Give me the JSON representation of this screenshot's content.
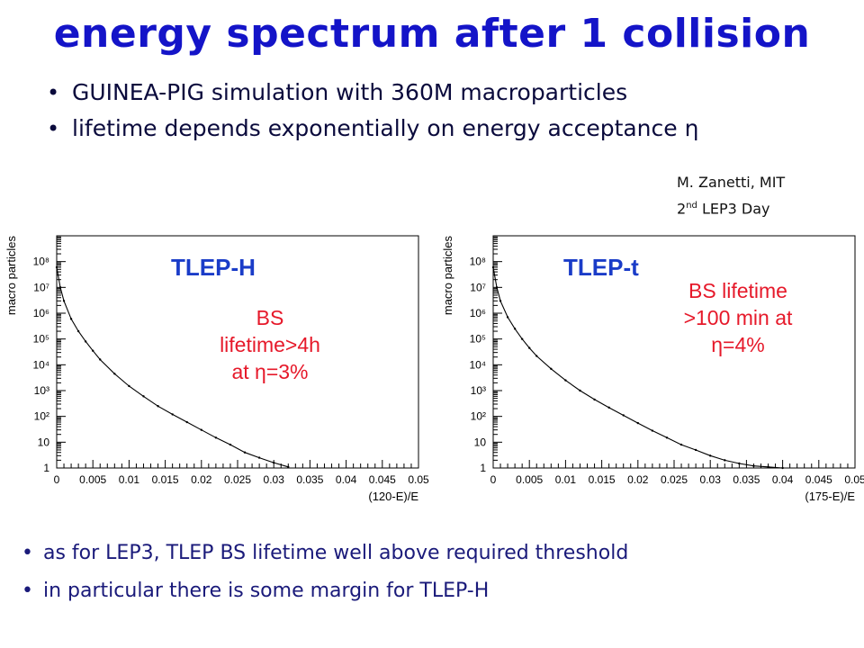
{
  "slide": {
    "title": "energy spectrum after 1 collision",
    "bullets": [
      "GUINEA-PIG simulation with 360M macroparticles",
      "lifetime depends exponentially on energy acceptance η"
    ],
    "credit_line1": "M. Zanetti, MIT",
    "credit_line2_prefix": "2",
    "credit_line2_sup": "nd",
    "credit_line2_suffix": " LEP3 Day",
    "bottom_bullets": [
      "as for LEP3, TLEP BS lifetime well above required threshold",
      "in particular there is some margin for TLEP-H"
    ]
  },
  "colors": {
    "title": "#1414c8",
    "plot_title": "#1a3cc8",
    "note": "#e6192a"
  },
  "chart_data": [
    {
      "type": "line",
      "title": "TLEP-H",
      "annotation_lines": [
        "BS",
        "lifetime>4h",
        "at η=3%"
      ],
      "xlabel": "(120-E)/E",
      "ylabel": "macro particles",
      "xlim": [
        0,
        0.05
      ],
      "ylim": [
        1,
        1000000000
      ],
      "yscale": "log",
      "x_ticks": [
        "0",
        "0.005",
        "0.01",
        "0.015",
        "0.02",
        "0.025",
        "0.03",
        "0.035",
        "0.04",
        "0.045",
        "0.05"
      ],
      "y_ticks": [
        "1",
        "10",
        "10²",
        "10³",
        "10⁴",
        "10⁵",
        "10⁶",
        "10⁷",
        "10⁸"
      ],
      "series": [
        {
          "x": [
            0,
            0.0005,
            0.001,
            0.002,
            0.003,
            0.004,
            0.005,
            0.006,
            0.008,
            0.01,
            0.012,
            0.014,
            0.016,
            0.018,
            0.02,
            0.022,
            0.024,
            0.026,
            0.028,
            0.03,
            0.032
          ],
          "values": [
            60000000,
            10000000,
            3000000,
            600000,
            200000,
            80000,
            35000,
            16000,
            4500,
            1500,
            600,
            250,
            120,
            60,
            30,
            15,
            8,
            4,
            2.5,
            1.6,
            1.1
          ]
        }
      ]
    },
    {
      "type": "line",
      "title": "TLEP-t",
      "annotation_lines": [
        "BS lifetime",
        ">100 min at",
        "η=4%"
      ],
      "xlabel": "(175-E)/E",
      "ylabel": "macro particles",
      "xlim": [
        0,
        0.05
      ],
      "ylim": [
        1,
        1000000000
      ],
      "yscale": "log",
      "x_ticks": [
        "0",
        "0.005",
        "0.01",
        "0.015",
        "0.02",
        "0.025",
        "0.03",
        "0.035",
        "0.04",
        "0.045",
        "0.05"
      ],
      "y_ticks": [
        "1",
        "10",
        "10²",
        "10³",
        "10⁴",
        "10⁵",
        "10⁶",
        "10⁷",
        "10⁸"
      ],
      "series": [
        {
          "x": [
            0,
            0.0005,
            0.001,
            0.002,
            0.003,
            0.004,
            0.005,
            0.006,
            0.008,
            0.01,
            0.012,
            0.014,
            0.016,
            0.018,
            0.02,
            0.022,
            0.024,
            0.026,
            0.028,
            0.03,
            0.032,
            0.034,
            0.036,
            0.038,
            0.04
          ],
          "values": [
            60000000,
            10000000,
            3000000,
            700000,
            250000,
            100000,
            45000,
            22000,
            7000,
            2500,
            1000,
            450,
            220,
            110,
            55,
            28,
            15,
            8,
            5,
            3,
            2,
            1.5,
            1.2,
            1.1,
            1
          ]
        }
      ]
    }
  ]
}
